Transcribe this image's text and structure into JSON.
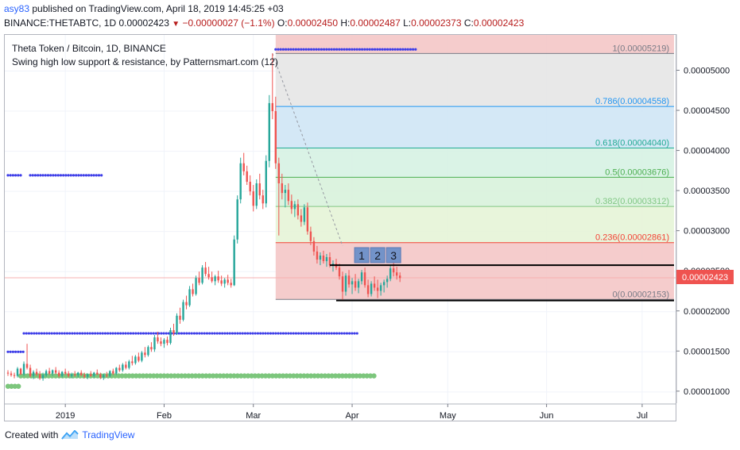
{
  "header": {
    "user": "asy83",
    "published_text": "published on TradingView.com, April 18, 2019 14:45:25 +03",
    "symbol": "BINANCE:THETABTC, 1D",
    "last": "0.00002423",
    "change": "−0.00000027 (−1.1%)",
    "o_label": "O:",
    "o_value": "0.00002450",
    "h_label": "H:",
    "h_value": "0.00002487",
    "l_label": "L:",
    "l_value": "0.00002373",
    "c_label": "C:",
    "c_value": "0.00002423"
  },
  "legend": {
    "title": "Theta Token / Bitcoin, 1D, BINANCE",
    "indicator": "Swing high low support & resistance, by Patternsmart.com (12)"
  },
  "footer": {
    "created_with": "Created with",
    "brand": "TradingView"
  },
  "colors": {
    "up": "#26a69a",
    "down": "#ef5350",
    "dots_blue": "#3d3de8",
    "dots_green": "#7cc67c",
    "fib_red": "#f4c7c7",
    "fib_grey": "#e5e5e5",
    "fib_blue": "#cfe6f5",
    "fib_green": "#d6f2e3"
  },
  "chart_data": {
    "type": "candlestick",
    "y_scale": "linear",
    "ylim": [
      8.5e-06,
      5.45e-05
    ],
    "y_ticks": [
      "0.00001000",
      "0.00001500",
      "0.00002000",
      "0.00002500",
      "0.00003000",
      "0.00003500",
      "0.00004000",
      "0.00004500",
      "0.00005000"
    ],
    "x_ticks": [
      "2019",
      "Feb",
      "Mar",
      "Apr",
      "May",
      "Jun",
      "Jul"
    ],
    "x_tick_days": [
      19,
      50,
      78,
      109,
      139,
      170,
      200
    ],
    "x_range_days": [
      1,
      210
    ],
    "last_price": "0.00002423",
    "candles": [
      [
        1,
        1.24e-05,
        1.27e-05,
        1.2e-05,
        1.23e-05
      ],
      [
        2,
        1.23e-05,
        1.26e-05,
        1.19e-05,
        1.21e-05
      ],
      [
        3,
        1.21e-05,
        1.24e-05,
        1.17e-05,
        1.2e-05
      ],
      [
        4,
        1.2e-05,
        1.31e-05,
        1.18e-05,
        1.29e-05
      ],
      [
        5,
        1.29e-05,
        1.3e-05,
        1.21e-05,
        1.22e-05
      ],
      [
        6,
        1.22e-05,
        1.38e-05,
        1.2e-05,
        1.35e-05
      ],
      [
        7,
        1.35e-05,
        1.6e-05,
        1.28e-05,
        1.3e-05
      ],
      [
        8,
        1.3e-05,
        1.34e-05,
        1.18e-05,
        1.2e-05
      ],
      [
        9,
        1.2e-05,
        1.27e-05,
        1.16e-05,
        1.25e-05
      ],
      [
        10,
        1.25e-05,
        1.29e-05,
        1.2e-05,
        1.22e-05
      ],
      [
        11,
        1.22e-05,
        1.26e-05,
        1.15e-05,
        1.17e-05
      ],
      [
        12,
        1.17e-05,
        1.24e-05,
        1.14e-05,
        1.21e-05
      ],
      [
        13,
        1.21e-05,
        1.28e-05,
        1.19e-05,
        1.26e-05
      ],
      [
        14,
        1.26e-05,
        1.3e-05,
        1.21e-05,
        1.23e-05
      ],
      [
        15,
        1.23e-05,
        1.28e-05,
        1.2e-05,
        1.27e-05
      ],
      [
        16,
        1.27e-05,
        1.31e-05,
        1.22e-05,
        1.24e-05
      ],
      [
        17,
        1.24e-05,
        1.27e-05,
        1.18e-05,
        1.2e-05
      ],
      [
        18,
        1.2e-05,
        1.26e-05,
        1.18e-05,
        1.25e-05
      ],
      [
        19,
        1.25e-05,
        1.29e-05,
        1.21e-05,
        1.23e-05
      ],
      [
        20,
        1.23e-05,
        1.26e-05,
        1.18e-05,
        1.2e-05
      ],
      [
        21,
        1.2e-05,
        1.24e-05,
        1.17e-05,
        1.22e-05
      ],
      [
        22,
        1.22e-05,
        1.26e-05,
        1.19e-05,
        1.21e-05
      ],
      [
        23,
        1.21e-05,
        1.25e-05,
        1.18e-05,
        1.24e-05
      ],
      [
        24,
        1.24e-05,
        1.27e-05,
        1.2e-05,
        1.21e-05
      ],
      [
        25,
        1.21e-05,
        1.24e-05,
        1.17e-05,
        1.19e-05
      ],
      [
        26,
        1.19e-05,
        1.23e-05,
        1.16e-05,
        1.22e-05
      ],
      [
        27,
        1.22e-05,
        1.26e-05,
        1.19e-05,
        1.2e-05
      ],
      [
        28,
        1.2e-05,
        1.25e-05,
        1.18e-05,
        1.24e-05
      ],
      [
        29,
        1.24e-05,
        1.28e-05,
        1.21e-05,
        1.22e-05
      ],
      [
        30,
        1.22e-05,
        1.24e-05,
        1.16e-05,
        1.18e-05
      ],
      [
        31,
        1.18e-05,
        1.23e-05,
        1.15e-05,
        1.21e-05
      ],
      [
        32,
        1.21e-05,
        1.25e-05,
        1.18e-05,
        1.2e-05
      ],
      [
        33,
        1.2e-05,
        1.27e-05,
        1.18e-05,
        1.26e-05
      ],
      [
        34,
        1.26e-05,
        1.29e-05,
        1.21e-05,
        1.23e-05
      ],
      [
        35,
        1.23e-05,
        1.31e-05,
        1.21e-05,
        1.3e-05
      ],
      [
        36,
        1.3e-05,
        1.34e-05,
        1.25e-05,
        1.27e-05
      ],
      [
        37,
        1.27e-05,
        1.36e-05,
        1.25e-05,
        1.34e-05
      ],
      [
        38,
        1.34e-05,
        1.38e-05,
        1.28e-05,
        1.3e-05
      ],
      [
        39,
        1.3e-05,
        1.4e-05,
        1.28e-05,
        1.38e-05
      ],
      [
        40,
        1.38e-05,
        1.45e-05,
        1.33e-05,
        1.36e-05
      ],
      [
        41,
        1.36e-05,
        1.46e-05,
        1.34e-05,
        1.44e-05
      ],
      [
        42,
        1.44e-05,
        1.49e-05,
        1.37e-05,
        1.39e-05
      ],
      [
        43,
        1.39e-05,
        1.51e-05,
        1.37e-05,
        1.49e-05
      ],
      [
        44,
        1.49e-05,
        1.56e-05,
        1.43e-05,
        1.46e-05
      ],
      [
        45,
        1.46e-05,
        1.58e-05,
        1.44e-05,
        1.56e-05
      ],
      [
        46,
        1.56e-05,
        1.62e-05,
        1.5e-05,
        1.53e-05
      ],
      [
        47,
        1.53e-05,
        1.71e-05,
        1.5e-05,
        1.68e-05
      ],
      [
        48,
        1.68e-05,
        1.75e-05,
        1.6e-05,
        1.63e-05
      ],
      [
        49,
        1.63e-05,
        1.68e-05,
        1.57e-05,
        1.6e-05
      ],
      [
        50,
        1.6e-05,
        1.67e-05,
        1.55e-05,
        1.65e-05
      ],
      [
        51,
        1.65e-05,
        1.69e-05,
        1.58e-05,
        1.61e-05
      ],
      [
        52,
        1.61e-05,
        1.8e-05,
        1.59e-05,
        1.77e-05
      ],
      [
        53,
        1.77e-05,
        1.85e-05,
        1.7e-05,
        1.73e-05
      ],
      [
        54,
        1.73e-05,
        1.98e-05,
        1.71e-05,
        1.95e-05
      ],
      [
        55,
        1.95e-05,
        2.05e-05,
        1.85e-05,
        1.9e-05
      ],
      [
        56,
        1.9e-05,
        2.15e-05,
        1.88e-05,
        2.12e-05
      ],
      [
        57,
        2.12e-05,
        2.2e-05,
        2.03e-05,
        2.08e-05
      ],
      [
        58,
        2.08e-05,
        2.32e-05,
        2.06e-05,
        2.28e-05
      ],
      [
        59,
        2.28e-05,
        2.35e-05,
        2.19e-05,
        2.22e-05
      ],
      [
        60,
        2.22e-05,
        2.45e-05,
        2.2e-05,
        2.42e-05
      ],
      [
        61,
        2.42e-05,
        2.5e-05,
        2.33e-05,
        2.36e-05
      ],
      [
        62,
        2.36e-05,
        2.58e-05,
        2.34e-05,
        2.55e-05
      ],
      [
        63,
        2.55e-05,
        2.62e-05,
        2.44e-05,
        2.47e-05
      ],
      [
        64,
        2.47e-05,
        2.56e-05,
        2.4e-05,
        2.43e-05
      ],
      [
        65,
        2.43e-05,
        2.5e-05,
        2.36e-05,
        2.38e-05
      ],
      [
        66,
        2.38e-05,
        2.46e-05,
        2.33e-05,
        2.44e-05
      ],
      [
        67,
        2.44e-05,
        2.51e-05,
        2.36e-05,
        2.39e-05
      ],
      [
        68,
        2.39e-05,
        2.45e-05,
        2.32e-05,
        2.35e-05
      ],
      [
        69,
        2.35e-05,
        2.42e-05,
        2.3e-05,
        2.4e-05
      ],
      [
        70,
        2.4e-05,
        2.46e-05,
        2.33e-05,
        2.36e-05
      ],
      [
        71,
        2.36e-05,
        2.41e-05,
        2.3e-05,
        2.33e-05
      ],
      [
        72,
        2.33e-05,
        2.95e-05,
        2.32e-05,
        2.9e-05
      ],
      [
        73,
        2.9e-05,
        3.45e-05,
        2.85e-05,
        3.4e-05
      ],
      [
        74,
        3.4e-05,
        3.92e-05,
        3.35e-05,
        3.85e-05
      ],
      [
        75,
        3.85e-05,
        3.98e-05,
        3.7e-05,
        3.75e-05
      ],
      [
        76,
        3.75e-05,
        3.82e-05,
        3.58e-05,
        3.62e-05
      ],
      [
        77,
        3.62e-05,
        3.7e-05,
        3.45e-05,
        3.5e-05
      ],
      [
        78,
        3.5e-05,
        3.58e-05,
        3.25e-05,
        3.32e-05
      ],
      [
        79,
        3.32e-05,
        3.65e-05,
        3.28e-05,
        3.6e-05
      ],
      [
        80,
        3.6e-05,
        3.72e-05,
        3.4e-05,
        3.45e-05
      ],
      [
        81,
        3.45e-05,
        3.52e-05,
        3.28e-05,
        3.35e-05
      ],
      [
        82,
        3.35e-05,
        3.95e-05,
        3.3e-05,
        3.88e-05
      ],
      [
        83,
        3.88e-05,
        4.7e-05,
        3.8e-05,
        4.6e-05
      ],
      [
        84,
        4.6e-05,
        5.22e-05,
        4.4e-05,
        4.5e-05
      ],
      [
        85,
        4.5e-05,
        4.68e-05,
        3.78e-05,
        3.85e-05
      ],
      [
        86,
        3.85e-05,
        3.92e-05,
        2.95e-05,
        3.6e-05
      ],
      [
        87,
        3.6e-05,
        3.72e-05,
        3.4e-05,
        3.48e-05
      ],
      [
        88,
        3.48e-05,
        3.58e-05,
        3.3e-05,
        3.52e-05
      ],
      [
        89,
        3.52e-05,
        3.6e-05,
        3.33e-05,
        3.38e-05
      ],
      [
        90,
        3.38e-05,
        3.46e-05,
        3.22e-05,
        3.28e-05
      ],
      [
        91,
        3.28e-05,
        3.38e-05,
        3.18e-05,
        3.34e-05
      ],
      [
        92,
        3.34e-05,
        3.4e-05,
        3.15e-05,
        3.2e-05
      ],
      [
        93,
        3.2e-05,
        3.28e-05,
        3.06e-05,
        3.12e-05
      ],
      [
        94,
        3.12e-05,
        3.34e-05,
        3.08e-05,
        3.3e-05
      ],
      [
        95,
        3.3e-05,
        3.36e-05,
        2.96e-05,
        3e-05
      ],
      [
        96,
        3e-05,
        3.06e-05,
        2.83e-05,
        2.88e-05
      ],
      [
        97,
        2.88e-05,
        2.93e-05,
        2.7e-05,
        2.75e-05
      ],
      [
        98,
        2.75e-05,
        2.82e-05,
        2.6e-05,
        2.65e-05
      ],
      [
        99,
        2.65e-05,
        2.74e-05,
        2.58e-05,
        2.7e-05
      ],
      [
        100,
        2.7e-05,
        2.76e-05,
        2.6e-05,
        2.63e-05
      ],
      [
        101,
        2.63e-05,
        2.72e-05,
        2.56e-05,
        2.68e-05
      ],
      [
        102,
        2.68e-05,
        2.74e-05,
        2.55e-05,
        2.58e-05
      ],
      [
        103,
        2.58e-05,
        2.64e-05,
        2.5e-05,
        2.6e-05
      ],
      [
        104,
        2.6e-05,
        2.66e-05,
        2.52e-05,
        2.55e-05
      ],
      [
        105,
        2.55e-05,
        2.6e-05,
        2.4e-05,
        2.44e-05
      ],
      [
        106,
        2.44e-05,
        2.5e-05,
        2.15e-05,
        2.25e-05
      ],
      [
        107,
        2.25e-05,
        2.48e-05,
        2.2e-05,
        2.45e-05
      ],
      [
        108,
        2.45e-05,
        2.52e-05,
        2.3e-05,
        2.34e-05
      ],
      [
        109,
        2.34e-05,
        2.42e-05,
        2.22e-05,
        2.38e-05
      ],
      [
        110,
        2.38e-05,
        2.47e-05,
        2.26e-05,
        2.3e-05
      ],
      [
        111,
        2.3e-05,
        2.41e-05,
        2.23e-05,
        2.38e-05
      ],
      [
        112,
        2.38e-05,
        2.52e-05,
        2.34e-05,
        2.49e-05
      ],
      [
        113,
        2.49e-05,
        2.55e-05,
        2.3e-05,
        2.33e-05
      ],
      [
        114,
        2.33e-05,
        2.4e-05,
        2.18e-05,
        2.22e-05
      ],
      [
        115,
        2.22e-05,
        2.38e-05,
        2.19e-05,
        2.35e-05
      ],
      [
        116,
        2.35e-05,
        2.44e-05,
        2.26e-05,
        2.3e-05
      ],
      [
        117,
        2.3e-05,
        2.4e-05,
        2.17e-05,
        2.26e-05
      ],
      [
        118,
        2.26e-05,
        2.36e-05,
        2.2e-05,
        2.33e-05
      ],
      [
        119,
        2.33e-05,
        2.4e-05,
        2.24e-05,
        2.37e-05
      ],
      [
        120,
        2.37e-05,
        2.45e-05,
        2.3e-05,
        2.41e-05
      ],
      [
        121,
        2.41e-05,
        2.58e-05,
        2.38e-05,
        2.54e-05
      ],
      [
        122,
        2.54e-05,
        2.62e-05,
        2.44e-05,
        2.49e-05
      ],
      [
        123,
        2.49e-05,
        2.56e-05,
        2.4e-05,
        2.45e-05
      ],
      [
        124,
        2.45e-05,
        2.49e-05,
        2.37e-05,
        2.42e-05
      ]
    ],
    "fibonacci": {
      "day_start": 85,
      "day_end": 210,
      "levels": [
        {
          "ratio": "1",
          "value": 5.219e-05,
          "label": "1(0.00005219)",
          "color": "#787b86"
        },
        {
          "ratio": "0.786",
          "value": 4.558e-05,
          "label": "0.786(0.00004558)",
          "color": "#2196f3"
        },
        {
          "ratio": "0.618",
          "value": 4.04e-05,
          "label": "0.618(0.00004040)",
          "color": "#22ab94"
        },
        {
          "ratio": "0.5",
          "value": 3.676e-05,
          "label": "0.5(0.00003676)",
          "color": "#4caf50"
        },
        {
          "ratio": "0.382",
          "value": 3.312e-05,
          "label": "0.382(0.00003312)",
          "color": "#81c784"
        },
        {
          "ratio": "0.236",
          "value": 2.861e-05,
          "label": "0.236(0.00002861)",
          "color": "#f44336"
        },
        {
          "ratio": "0",
          "value": 2.153e-05,
          "label": "0(0.00002153)",
          "color": "#787b86"
        }
      ]
    },
    "support_resistance_lines": [
      {
        "day_start": 102,
        "day_end": 210,
        "value": 2.58e-05
      },
      {
        "day_start": 104,
        "day_end": 210,
        "value": 2.14e-05
      }
    ],
    "swing_points": [
      {
        "label": "1",
        "day": 112
      },
      {
        "label": "2",
        "day": 117
      },
      {
        "label": "3",
        "day": 122
      }
    ],
    "dotted_levels": [
      {
        "color": "blue",
        "value": 5.27e-05,
        "day_start": 85,
        "day_end": 129
      },
      {
        "color": "blue",
        "value": 3.7e-05,
        "day_start": 1,
        "day_end": 5
      },
      {
        "color": "blue",
        "value": 3.7e-05,
        "day_start": 8,
        "day_end": 31
      },
      {
        "color": "blue",
        "value": 1.5e-05,
        "day_start": 1,
        "day_end": 6
      },
      {
        "color": "blue",
        "value": 1.73e-05,
        "day_start": 6,
        "day_end": 111
      },
      {
        "color": "green",
        "value": 1.2e-05,
        "day_start": 5,
        "day_end": 116
      },
      {
        "color": "green",
        "value": 1.07e-05,
        "day_start": 1,
        "day_end": 5
      }
    ]
  }
}
